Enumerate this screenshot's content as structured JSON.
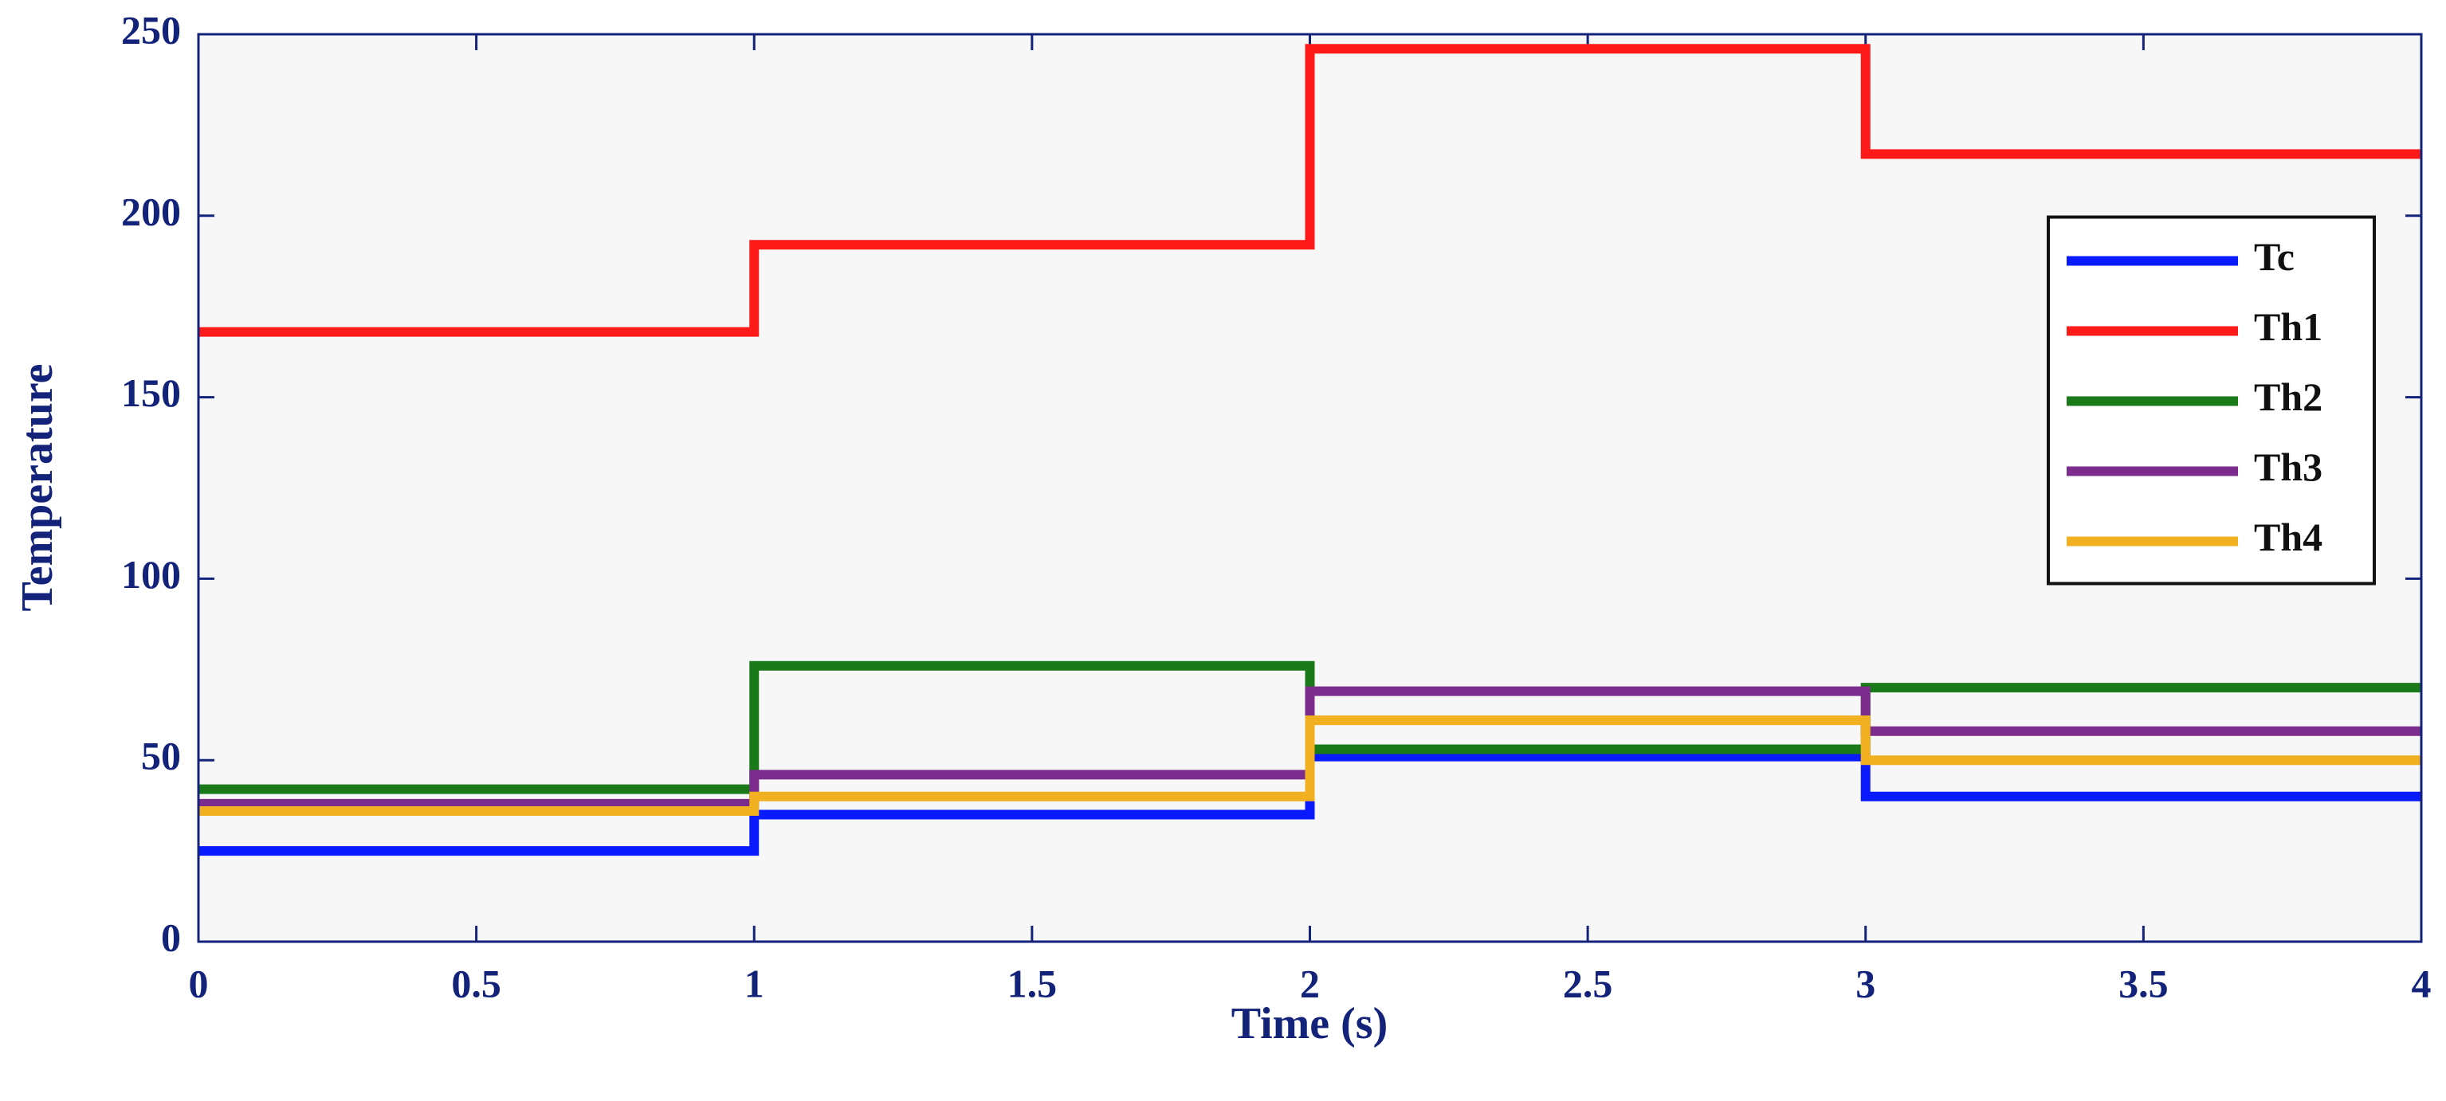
{
  "chart_data": {
    "type": "step",
    "xlabel": "Time (s)",
    "ylabel": "Temperature",
    "x": [
      0,
      1,
      2,
      3,
      4
    ],
    "series": [
      {
        "name": "Tc",
        "color": "#0a1aff",
        "values": [
          25,
          35,
          51,
          40,
          40
        ]
      },
      {
        "name": "Th1",
        "color": "#ff1a1a",
        "values": [
          168,
          192,
          246,
          217,
          217
        ]
      },
      {
        "name": "Th2",
        "color": "#1a7a1a",
        "values": [
          42,
          76,
          53,
          70,
          70
        ]
      },
      {
        "name": "Th3",
        "color": "#7b2c8c",
        "values": [
          38,
          46,
          69,
          58,
          58
        ]
      },
      {
        "name": "Th4",
        "color": "#f0b020",
        "values": [
          36,
          40,
          61,
          50,
          50
        ]
      }
    ],
    "xlim": [
      0,
      4
    ],
    "xticks": [
      0,
      0.5,
      1,
      1.5,
      2,
      2.5,
      3,
      3.5,
      4
    ],
    "ylim": [
      0,
      250
    ],
    "yticks": [
      0,
      50,
      100,
      150,
      200,
      250
    ],
    "grid": false,
    "legend": "center right"
  }
}
